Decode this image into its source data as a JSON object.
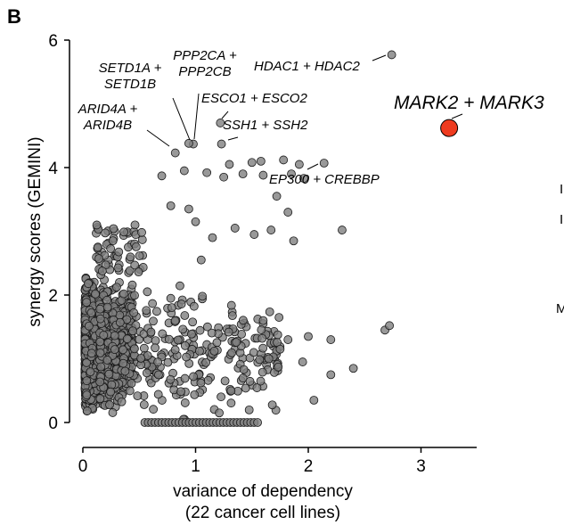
{
  "panel_label": "B",
  "colors": {
    "point": "#7f7f7f",
    "point_edge": "#1a1a1a",
    "highlight": "#ee3b1f"
  },
  "edge_fragments": [
    "I",
    "I",
    "M"
  ],
  "chart_data": {
    "type": "scatter",
    "title": "",
    "xlabel": "variance of dependency",
    "xlabel2": "(22 cancer cell lines)",
    "ylabel": "synergy scores (GEMINI)",
    "xlim": [
      -0.15,
      3.5
    ],
    "ylim": [
      -0.25,
      6.1
    ],
    "xticks": [
      0,
      1,
      2,
      3
    ],
    "yticks": [
      0,
      2,
      4,
      6
    ],
    "xtick_labels": [
      "0",
      "1",
      "2",
      "3"
    ],
    "ytick_labels": [
      "0",
      "2",
      "4",
      "6"
    ],
    "grid": false,
    "highlight": {
      "label": "MARK2 + MARK3",
      "x": 3.25,
      "y": 4.62
    },
    "annotations": [
      {
        "lines": [
          "HDAC1 + HDAC2"
        ],
        "x": 2.74,
        "y": 5.77
      },
      {
        "lines": [
          "PPP2CA +",
          "PPP2CB"
        ],
        "x": 0.98,
        "y": 4.37
      },
      {
        "lines": [
          "SETD1A +",
          "SETD1B"
        ],
        "x": 0.94,
        "y": 4.38
      },
      {
        "lines": [
          "ARID4A +",
          "ARID4B"
        ],
        "x": 0.82,
        "y": 4.23
      },
      {
        "lines": [
          "ESCO1 + ESCO2"
        ],
        "x": 1.22,
        "y": 4.7
      },
      {
        "lines": [
          "SSH1 + SSH2"
        ],
        "x": 1.23,
        "y": 4.37
      },
      {
        "lines": [
          "EP300 + CREBBP"
        ],
        "x": 2.14,
        "y": 4.07
      }
    ],
    "labeled_points": [
      {
        "x": 2.74,
        "y": 5.77
      },
      {
        "x": 0.98,
        "y": 4.37
      },
      {
        "x": 0.94,
        "y": 4.38
      },
      {
        "x": 0.82,
        "y": 4.23
      },
      {
        "x": 1.22,
        "y": 4.7
      },
      {
        "x": 1.23,
        "y": 4.37
      },
      {
        "x": 2.14,
        "y": 4.07
      }
    ],
    "sparse_points": [
      {
        "x": 0.7,
        "y": 3.87
      },
      {
        "x": 0.9,
        "y": 3.95
      },
      {
        "x": 1.1,
        "y": 3.92
      },
      {
        "x": 1.3,
        "y": 4.05
      },
      {
        "x": 1.5,
        "y": 4.08
      },
      {
        "x": 1.58,
        "y": 4.1
      },
      {
        "x": 1.78,
        "y": 4.12
      },
      {
        "x": 1.92,
        "y": 4.05
      },
      {
        "x": 1.42,
        "y": 3.9
      },
      {
        "x": 1.6,
        "y": 3.88
      },
      {
        "x": 1.25,
        "y": 3.85
      },
      {
        "x": 1.85,
        "y": 3.9
      },
      {
        "x": 1.96,
        "y": 3.83
      },
      {
        "x": 1.72,
        "y": 3.55
      },
      {
        "x": 1.82,
        "y": 3.3
      },
      {
        "x": 1.67,
        "y": 3.02
      },
      {
        "x": 2.3,
        "y": 3.02
      },
      {
        "x": 1.52,
        "y": 2.95
      },
      {
        "x": 1.35,
        "y": 3.05
      },
      {
        "x": 1.15,
        "y": 2.9
      },
      {
        "x": 1.0,
        "y": 3.15
      },
      {
        "x": 0.94,
        "y": 3.35
      },
      {
        "x": 0.78,
        "y": 3.4
      },
      {
        "x": 1.05,
        "y": 2.55
      },
      {
        "x": 1.87,
        "y": 2.85
      },
      {
        "x": 2.68,
        "y": 1.45
      },
      {
        "x": 2.72,
        "y": 1.52
      },
      {
        "x": 2.4,
        "y": 0.85
      },
      {
        "x": 2.2,
        "y": 1.3
      },
      {
        "x": 2.0,
        "y": 1.35
      },
      {
        "x": 1.95,
        "y": 0.95
      },
      {
        "x": 2.05,
        "y": 0.35
      },
      {
        "x": 2.2,
        "y": 0.75
      },
      {
        "x": 1.75,
        "y": 1.15
      },
      {
        "x": 1.6,
        "y": 1.6
      },
      {
        "x": 1.65,
        "y": 1.0
      },
      {
        "x": 1.82,
        "y": 1.3
      }
    ],
    "bulk_rule": "Remaining ~2,000 points form a dense cloud near x=0.03–0.4, y=0–3.1, thinning out to x≈2.5, plus a row of points at y=0 for x=0.55–1.55",
    "zero_row": {
      "y": 0.0,
      "x_from": 0.55,
      "x_to": 1.55,
      "count": 34
    }
  }
}
